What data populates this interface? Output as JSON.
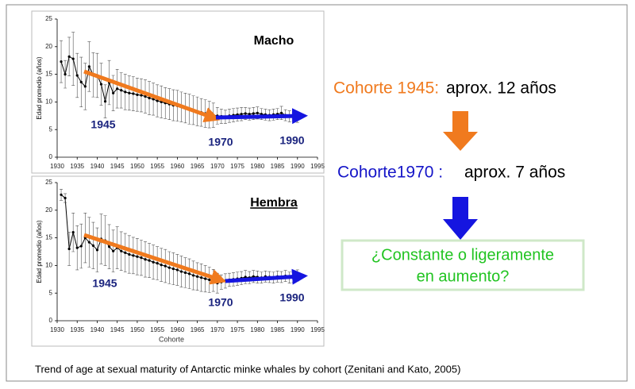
{
  "chart_data": [
    {
      "type": "line",
      "title": "Macho",
      "ylabel": "Edad promedio (años)",
      "xlim": [
        1930,
        1995
      ],
      "xticks": [
        1930,
        1935,
        1940,
        1945,
        1950,
        1955,
        1960,
        1965,
        1970,
        1975,
        1980,
        1985,
        1990,
        1995
      ],
      "ylim": [
        0,
        25
      ],
      "yticks": [
        0,
        5,
        10,
        15,
        20,
        25
      ],
      "color": "#000000",
      "annotations": [
        "1945",
        "1970",
        "1990"
      ],
      "annotation_color": "#1a237e",
      "x": [
        1931,
        1932,
        1933,
        1934,
        1935,
        1936,
        1937,
        1938,
        1939,
        1940,
        1941,
        1942,
        1943,
        1944,
        1945,
        1946,
        1947,
        1948,
        1949,
        1950,
        1951,
        1952,
        1953,
        1954,
        1955,
        1956,
        1957,
        1958,
        1959,
        1960,
        1961,
        1962,
        1963,
        1964,
        1965,
        1966,
        1967,
        1968,
        1969,
        1970,
        1971,
        1972,
        1973,
        1974,
        1975,
        1976,
        1977,
        1978,
        1979,
        1980,
        1981,
        1982,
        1983,
        1984,
        1985,
        1986,
        1987,
        1988,
        1989,
        1990
      ],
      "values": [
        17.3,
        15.0,
        18.2,
        17.8,
        14.8,
        13.6,
        12.8,
        16.4,
        14.9,
        14.8,
        13.2,
        10.1,
        13.5,
        11.6,
        12.4,
        12.1,
        11.8,
        11.6,
        11.5,
        11.3,
        11.2,
        11.0,
        10.7,
        10.5,
        10.2,
        10.0,
        9.8,
        9.6,
        9.4,
        9.3,
        9.1,
        8.9,
        8.7,
        8.5,
        8.3,
        8.1,
        7.9,
        7.7,
        7.6,
        7.5,
        7.4,
        7.3,
        7.5,
        7.6,
        7.7,
        7.8,
        7.9,
        7.8,
        7.9,
        8.0,
        7.8,
        7.7,
        7.6,
        7.7,
        7.8,
        8.0,
        7.6,
        7.4,
        7.3,
        6.8
      ],
      "errors": [
        3.8,
        2.5,
        3.5,
        4.8,
        4.0,
        4.5,
        4.2,
        4.5,
        4.0,
        4.0,
        3.8,
        3.0,
        4.0,
        3.2,
        3.5,
        3.2,
        3.2,
        3.1,
        3.1,
        3.0,
        3.0,
        3.0,
        3.0,
        2.9,
        2.9,
        2.9,
        2.8,
        2.8,
        2.8,
        2.8,
        2.7,
        2.7,
        2.7,
        2.6,
        2.6,
        2.5,
        2.5,
        2.4,
        2.2,
        1.5,
        1.3,
        1.2,
        1.2,
        1.2,
        1.2,
        1.2,
        1.1,
        1.1,
        1.1,
        1.1,
        1.0,
        1.0,
        1.0,
        1.0,
        1.0,
        1.2,
        1.0,
        1.0,
        0.8,
        0.5
      ]
    },
    {
      "type": "line",
      "title": "Hembra",
      "ylabel": "Edad promedio (años)",
      "xlabel": "Cohorte",
      "xlim": [
        1930,
        1995
      ],
      "xticks": [
        1930,
        1935,
        1940,
        1945,
        1950,
        1955,
        1960,
        1965,
        1970,
        1975,
        1980,
        1985,
        1990,
        1995
      ],
      "ylim": [
        0,
        25
      ],
      "yticks": [
        0,
        5,
        10,
        15,
        20,
        25
      ],
      "color": "#000000",
      "annotations": [
        "1945",
        "1970",
        "1990"
      ],
      "annotation_color": "#1a237e",
      "x": [
        1931,
        1932,
        1933,
        1934,
        1935,
        1936,
        1937,
        1938,
        1939,
        1940,
        1941,
        1942,
        1943,
        1944,
        1945,
        1946,
        1947,
        1948,
        1949,
        1950,
        1951,
        1952,
        1953,
        1954,
        1955,
        1956,
        1957,
        1958,
        1959,
        1960,
        1961,
        1962,
        1963,
        1964,
        1965,
        1966,
        1967,
        1968,
        1969,
        1970,
        1971,
        1972,
        1973,
        1974,
        1975,
        1976,
        1977,
        1978,
        1979,
        1980,
        1981,
        1982,
        1983,
        1984,
        1985,
        1986,
        1987,
        1988,
        1989,
        1990
      ],
      "values": [
        22.8,
        22.2,
        13.0,
        16.0,
        13.2,
        13.5,
        15.0,
        14.2,
        13.6,
        12.8,
        14.8,
        14.5,
        13.4,
        12.6,
        13.2,
        12.6,
        12.3,
        12.0,
        11.8,
        11.6,
        11.4,
        11.1,
        10.9,
        10.6,
        10.4,
        10.1,
        9.9,
        9.6,
        9.4,
        9.2,
        8.9,
        8.7,
        8.5,
        8.2,
        8.0,
        7.8,
        7.6,
        7.4,
        7.3,
        6.8,
        7.0,
        7.2,
        7.4,
        7.5,
        7.6,
        7.7,
        7.9,
        7.8,
        8.0,
        7.9,
        7.8,
        8.0,
        7.9,
        7.8,
        8.0,
        7.9,
        8.1,
        7.8,
        7.9,
        8.2
      ],
      "errors": [
        1.0,
        0.8,
        3.0,
        3.5,
        4.0,
        4.0,
        4.5,
        4.5,
        4.2,
        4.0,
        4.5,
        4.5,
        4.0,
        3.8,
        3.8,
        3.5,
        3.5,
        3.4,
        3.3,
        3.3,
        3.2,
        3.2,
        3.1,
        3.1,
        3.0,
        3.0,
        3.0,
        2.9,
        2.9,
        2.8,
        2.8,
        2.7,
        2.7,
        2.6,
        2.5,
        2.5,
        2.4,
        2.3,
        2.0,
        1.8,
        1.3,
        1.3,
        1.2,
        1.2,
        1.2,
        1.2,
        1.2,
        1.1,
        1.1,
        1.1,
        1.0,
        1.0,
        1.0,
        1.0,
        1.0,
        1.0,
        1.0,
        1.0,
        1.0,
        1.0
      ]
    }
  ],
  "slide": {
    "cohort1945_label": "Cohorte 1945:",
    "cohort1945_text": "aprox. 12 años",
    "cohort1970_label": "Cohorte1970 :",
    "cohort1970_text": "aprox. 7 años",
    "question": [
      "¿Constante o ligeramente",
      "en aumento?"
    ],
    "caption": "Trend of age at sexual maturity of Antarctic minke whales by cohort  (Zenitani and Kato, 2005)"
  }
}
